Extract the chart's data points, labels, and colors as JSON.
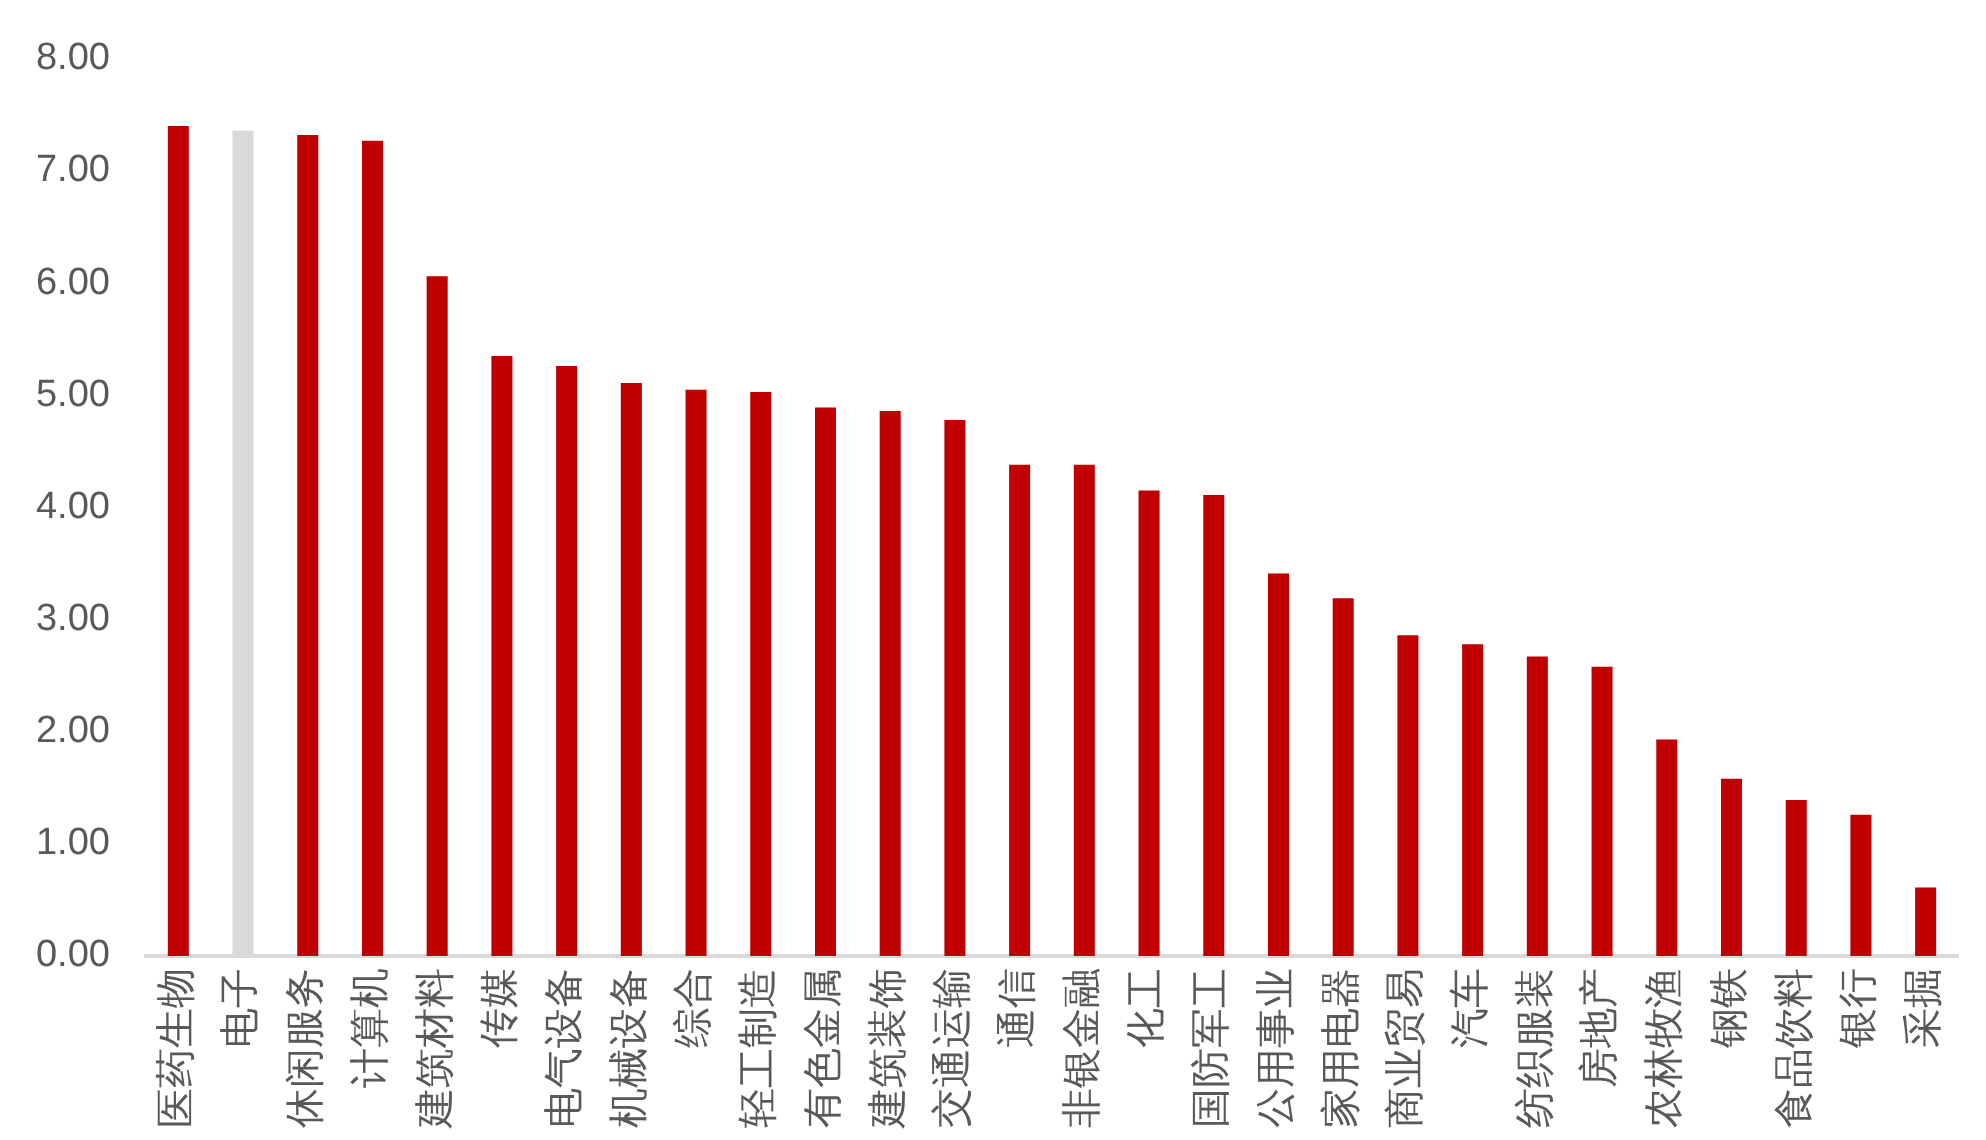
{
  "chart_data": {
    "type": "bar",
    "categories": [
      "医药生物",
      "电子",
      "休闲服务",
      "计算机",
      "建筑材料",
      "传媒",
      "电气设备",
      "机械设备",
      "综合",
      "轻工制造",
      "有色金属",
      "建筑装饰",
      "交通运输",
      "通信",
      "非银金融",
      "化工",
      "国防军工",
      "公用事业",
      "家用电器",
      "商业贸易",
      "汽车",
      "纺织服装",
      "房地产",
      "农林牧渔",
      "钢铁",
      "食品饮料",
      "银行",
      "采掘"
    ],
    "values": [
      7.4,
      7.36,
      7.32,
      7.27,
      6.06,
      5.35,
      5.26,
      5.11,
      5.05,
      5.03,
      4.89,
      4.86,
      4.78,
      4.38,
      4.38,
      4.15,
      4.11,
      3.41,
      3.19,
      2.86,
      2.78,
      2.67,
      2.58,
      1.93,
      1.58,
      1.39,
      1.26,
      0.61
    ],
    "colors": [
      "#c00000",
      "#d9d9d9",
      "#c00000",
      "#c00000",
      "#c00000",
      "#c00000",
      "#c00000",
      "#c00000",
      "#c00000",
      "#c00000",
      "#c00000",
      "#c00000",
      "#c00000",
      "#c00000",
      "#c00000",
      "#c00000",
      "#c00000",
      "#c00000",
      "#c00000",
      "#c00000",
      "#c00000",
      "#c00000",
      "#c00000",
      "#c00000",
      "#c00000",
      "#c00000",
      "#c00000",
      "#c00000"
    ],
    "ylim": [
      0,
      8
    ],
    "yticks": [
      {
        "value": 0,
        "label": "0.00"
      },
      {
        "value": 1,
        "label": "1.00"
      },
      {
        "value": 2,
        "label": "2.00"
      },
      {
        "value": 3,
        "label": "3.00"
      },
      {
        "value": 4,
        "label": "4.00"
      },
      {
        "value": 5,
        "label": "5.00"
      },
      {
        "value": 6,
        "label": "6.00"
      },
      {
        "value": 7,
        "label": "7.00"
      },
      {
        "value": 8,
        "label": "8.00"
      }
    ],
    "grid": false,
    "legend": false
  }
}
